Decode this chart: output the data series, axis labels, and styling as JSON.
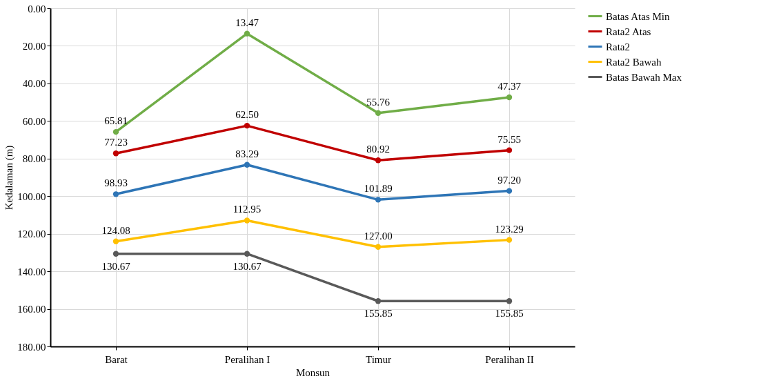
{
  "chart_data": {
    "type": "line",
    "xlabel": "Monsun",
    "ylabel": "Kedalaman (m)",
    "categories": [
      "Barat",
      "Peralihan I",
      "Timur",
      "Peralihan II"
    ],
    "series": [
      {
        "name": "Batas Atas Min",
        "color": "#70ad47",
        "values": [
          65.81,
          13.47,
          55.76,
          47.37
        ],
        "value_labels": [
          "65.81",
          "13.47",
          "55.76",
          "47.37"
        ]
      },
      {
        "name": "Rata2 Atas",
        "color": "#c00000",
        "values": [
          77.23,
          62.5,
          80.92,
          75.55
        ],
        "value_labels": [
          "77.23",
          "62.50",
          "80.92",
          "75.55"
        ]
      },
      {
        "name": "Rata2",
        "color": "#2e75b6",
        "values": [
          98.93,
          83.29,
          101.89,
          97.2
        ],
        "value_labels": [
          "98.93",
          "83.29",
          "101.89",
          "97.20"
        ]
      },
      {
        "name": "Rata2 Bawah",
        "color": "#ffc000",
        "values": [
          124.08,
          112.95,
          127.0,
          123.29
        ],
        "value_labels": [
          "124.08",
          "112.95",
          "127.00",
          "123.29"
        ]
      },
      {
        "name": "Batas Bawah Max",
        "color": "#595959",
        "values": [
          130.67,
          130.67,
          155.85,
          155.85
        ],
        "value_labels": [
          "130.67",
          "130.67",
          "155.85",
          "155.85"
        ]
      }
    ],
    "ylim": [
      180,
      0
    ],
    "yticks": [
      {
        "value": 0,
        "label": "0.00"
      },
      {
        "value": 20,
        "label": "20.00"
      },
      {
        "value": 40,
        "label": "40.00"
      },
      {
        "value": 60,
        "label": "60.00"
      },
      {
        "value": 80,
        "label": "80.00"
      },
      {
        "value": 100,
        "label": "100.00"
      },
      {
        "value": 120,
        "label": "120.00"
      },
      {
        "value": 140,
        "label": "140.00"
      },
      {
        "value": 160,
        "label": "160.00"
      },
      {
        "value": 180,
        "label": "180.00"
      }
    ],
    "grid": true,
    "legend": "right",
    "marker": "circle",
    "line_style": "solid"
  }
}
